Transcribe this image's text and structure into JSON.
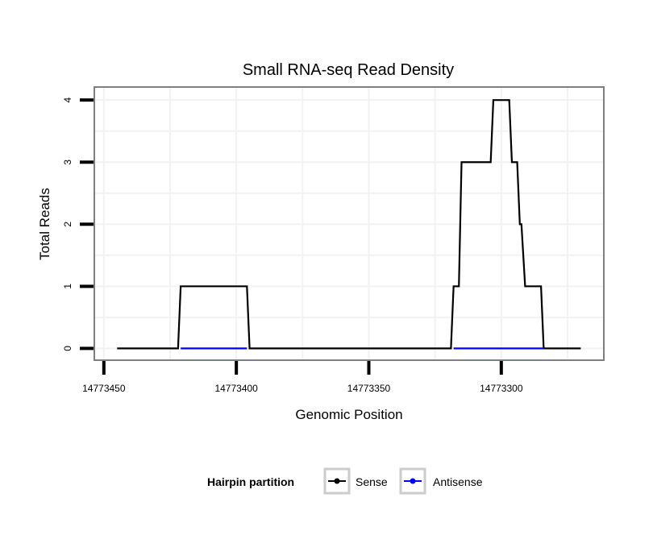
{
  "chart_data": {
    "type": "line",
    "title": "Small RNA-seq Read Density",
    "xlabel": "Genomic Position",
    "ylabel": "Total Reads",
    "xlim": [
      14773453.6,
      14773261.3
    ],
    "x_reversed": true,
    "ylim": [
      -0.19,
      4.21
    ],
    "x_ticks": [
      14773450,
      14773400,
      14773350,
      14773300
    ],
    "x_tick_labels": [
      "14773450",
      "14773400",
      "14773350",
      "14773300"
    ],
    "y_ticks": [
      0,
      1,
      2,
      3,
      4
    ],
    "y_tick_labels": [
      "0",
      "1",
      "2",
      "3",
      "4"
    ],
    "grid": true,
    "legend": {
      "title": "Hairpin partition",
      "placement": "bottom",
      "entries": [
        "Sense",
        "Antisense"
      ]
    },
    "series": [
      {
        "name": "Sense",
        "color": "#000000",
        "x": [
          14773445,
          14773422,
          14773421,
          14773396,
          14773395,
          14773319,
          14773318,
          14773316,
          14773315,
          14773304,
          14773303,
          14773297,
          14773296,
          14773294,
          14773293,
          14773292.4,
          14773291,
          14773285,
          14773284,
          14773270
        ],
        "y": [
          0,
          0,
          1,
          1,
          0,
          0,
          1,
          1,
          3,
          3,
          4,
          4,
          3,
          3,
          2,
          2,
          1,
          1,
          0,
          0
        ]
      },
      {
        "name": "Antisense",
        "color": "#0000ff",
        "segments": [
          {
            "x": [
              14773421,
              14773396
            ],
            "y": [
              0,
              0
            ]
          },
          {
            "x": [
              14773318,
              14773284
            ],
            "y": [
              0,
              0
            ]
          }
        ]
      }
    ]
  }
}
